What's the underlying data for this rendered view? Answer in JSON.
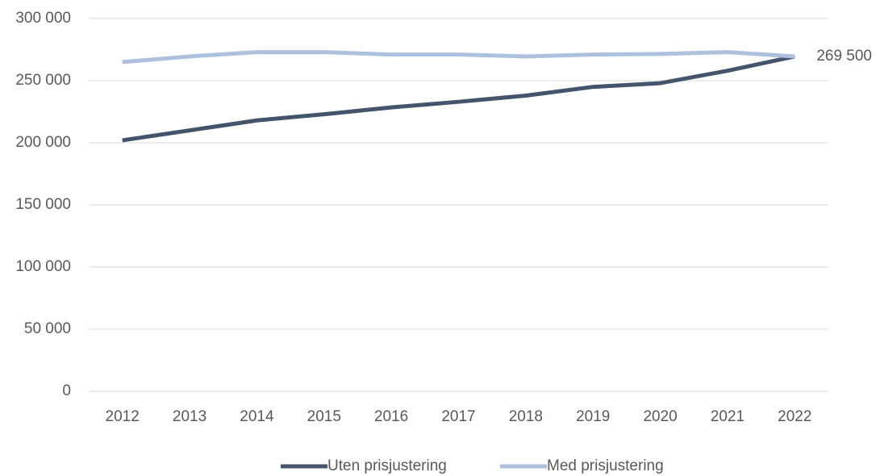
{
  "chart_data": {
    "type": "line",
    "categories": [
      "2012",
      "2013",
      "2014",
      "2015",
      "2016",
      "2017",
      "2018",
      "2019",
      "2020",
      "2021",
      "2022"
    ],
    "series": [
      {
        "name": "Uten prisjustering",
        "color": "#44546a",
        "values": [
          202000,
          210000,
          218000,
          223000,
          228500,
          233000,
          238000,
          245000,
          248000,
          258000,
          269500
        ]
      },
      {
        "name": "Med prisjustering",
        "color": "#adc0de",
        "values": [
          265000,
          269500,
          273000,
          273000,
          271000,
          271000,
          269500,
          271000,
          271500,
          273000,
          269500
        ],
        "value_labels": [
          null,
          null,
          null,
          null,
          null,
          null,
          null,
          null,
          null,
          null,
          "269 500"
        ]
      }
    ],
    "ylim": [
      0,
      300000
    ],
    "yticks": [
      0,
      {
        "value": 50000,
        "label": "50 000"
      },
      {
        "value": 100000,
        "label": "100 000"
      },
      {
        "value": 150000,
        "label": "150 000"
      },
      {
        "value": 200000,
        "label": "200 000"
      },
      {
        "value": 250000,
        "label": "250 000"
      },
      {
        "value": 300000,
        "label": "300 000"
      }
    ],
    "grid": true,
    "legend": "bottom"
  }
}
